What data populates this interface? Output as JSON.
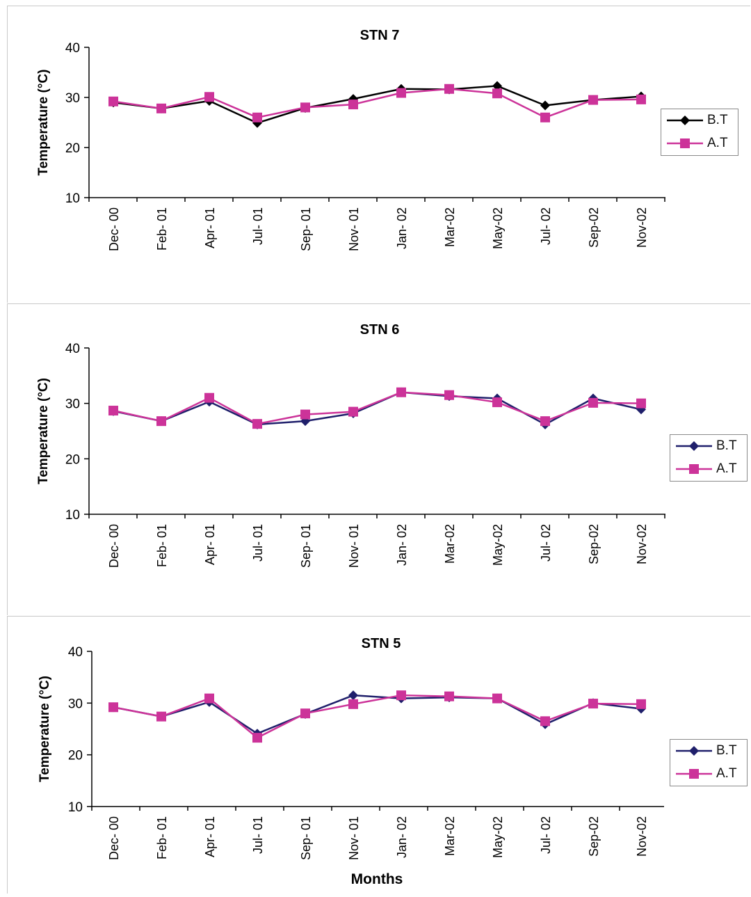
{
  "colors": {
    "bt": "#1f1f6b",
    "bt_marker": "#1f1f6b",
    "at": "#cc3399",
    "axis": "#000000"
  },
  "xlabel_bottom": "Months",
  "chart_data": [
    {
      "type": "line",
      "title": "STN 7",
      "ylabel": "Temperature (°C)",
      "ylim": [
        10,
        40
      ],
      "yticks": [
        10,
        20,
        30,
        40
      ],
      "categories": [
        "Dec-00",
        "Feb-01",
        "Apr-01",
        "Jul-01",
        "Sep-01",
        "Nov-01",
        "Jan-02",
        "Mar-02",
        "May-02",
        "Jul-02",
        "Sep-02",
        "Nov-02"
      ],
      "category_labels": [
        "Dec- 00",
        "Feb- 01",
        "Apr- 01",
        "Jul- 01",
        "Sep- 01",
        "Nov- 01",
        "Jan- 02",
        "Mar-02",
        "May-02",
        "Jul- 02",
        "Sep-02",
        "Nov-02"
      ],
      "series": [
        {
          "name": "B.T",
          "marker": "diamond",
          "values": [
            29.0,
            27.8,
            29.3,
            24.9,
            27.9,
            29.7,
            31.7,
            31.6,
            32.3,
            28.4,
            29.5,
            30.2
          ]
        },
        {
          "name": "A.T",
          "marker": "square",
          "values": [
            29.2,
            27.8,
            30.1,
            26.0,
            28.0,
            28.6,
            30.9,
            31.7,
            30.8,
            26.0,
            29.5,
            29.6
          ]
        }
      ],
      "legend_position": "right"
    },
    {
      "type": "line",
      "title": "STN 6",
      "ylabel": "Temperature (°C)",
      "ylim": [
        10,
        40
      ],
      "yticks": [
        10,
        20,
        30,
        40
      ],
      "categories": [
        "Dec-00",
        "Feb-01",
        "Apr-01",
        "Jul-01",
        "Sep-01",
        "Nov-01",
        "Jan-02",
        "Mar-02",
        "May-02",
        "Jul-02",
        "Sep-02",
        "Nov-02"
      ],
      "category_labels": [
        "Dec- 00",
        "Feb- 01",
        "Apr- 01",
        "Jul- 01",
        "Sep- 01",
        "Nov- 01",
        "Jan- 02",
        "Mar-02",
        "May-02",
        "Jul- 02",
        "Sep-02",
        "Nov-02"
      ],
      "series": [
        {
          "name": "B.T",
          "marker": "diamond",
          "values": [
            28.6,
            26.8,
            30.3,
            26.2,
            26.8,
            28.2,
            32.0,
            31.3,
            30.9,
            26.2,
            30.9,
            28.9
          ]
        },
        {
          "name": "A.T",
          "marker": "square",
          "values": [
            28.7,
            26.8,
            31.0,
            26.3,
            28.0,
            28.5,
            32.0,
            31.5,
            30.2,
            26.8,
            30.1,
            30.0
          ]
        }
      ],
      "legend_position": "right"
    },
    {
      "type": "line",
      "title": "STN 5",
      "ylabel": "Temperature (°C)",
      "ylim": [
        10,
        40
      ],
      "yticks": [
        10,
        20,
        30,
        40
      ],
      "categories": [
        "Dec-00",
        "Feb-01",
        "Apr-01",
        "Jul-01",
        "Sep-01",
        "Nov-01",
        "Jan-02",
        "Mar-02",
        "May-02",
        "Jul-02",
        "Sep-02",
        "Nov-02"
      ],
      "category_labels": [
        "Dec- 00",
        "Feb- 01",
        "Apr- 01",
        "Jul- 01",
        "Sep- 01",
        "Nov- 01",
        "Jan- 02",
        "Mar-02",
        "May-02",
        "Jul- 02",
        "Sep-02",
        "Nov-02"
      ],
      "series": [
        {
          "name": "B.T",
          "marker": "diamond",
          "values": [
            29.2,
            27.4,
            30.2,
            24.1,
            27.9,
            31.5,
            30.9,
            31.1,
            30.9,
            25.9,
            30.0,
            28.9
          ]
        },
        {
          "name": "A.T",
          "marker": "square",
          "values": [
            29.2,
            27.4,
            30.9,
            23.3,
            28.0,
            29.8,
            31.5,
            31.3,
            30.9,
            26.5,
            29.9,
            29.8
          ]
        }
      ],
      "legend_position": "right"
    }
  ]
}
